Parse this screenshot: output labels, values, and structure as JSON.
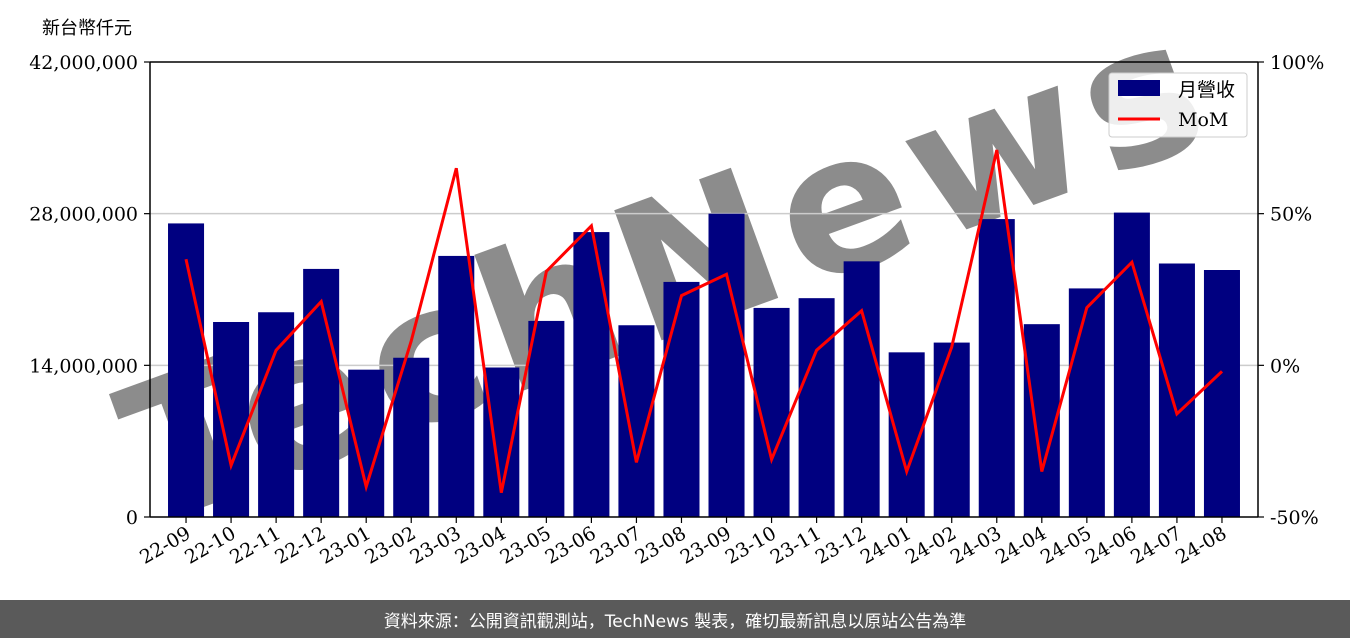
{
  "chart_data": {
    "type": "bar",
    "unit_label": "新台幣仟元",
    "categories": [
      "22-09",
      "22-10",
      "22-11",
      "22-12",
      "23-01",
      "23-02",
      "23-03",
      "23-04",
      "23-05",
      "23-06",
      "23-07",
      "23-08",
      "23-09",
      "23-10",
      "23-11",
      "23-12",
      "24-01",
      "24-02",
      "24-03",
      "24-04",
      "24-05",
      "24-06",
      "24-07",
      "24-08"
    ],
    "series": [
      {
        "name": "月營收",
        "type": "bar",
        "axis": "left",
        "color": "#000080",
        "values": [
          27100000,
          18000000,
          18900000,
          22900000,
          13600000,
          14700000,
          24100000,
          13800000,
          18100000,
          26300000,
          17700000,
          21700000,
          28000000,
          19300000,
          20200000,
          23600000,
          15200000,
          16100000,
          27500000,
          17800000,
          21100000,
          28100000,
          23400000,
          22800000
        ]
      },
      {
        "name": "MoM",
        "type": "line",
        "axis": "right",
        "color": "#ff0000",
        "values": [
          35,
          -33,
          5,
          21,
          -40,
          8,
          65,
          -42,
          31,
          46,
          -32,
          23,
          30,
          -31,
          5,
          18,
          -35,
          6,
          71,
          -35,
          19,
          34,
          -16,
          -2
        ]
      }
    ],
    "y_left": {
      "min": 0,
      "max": 42000000,
      "ticks": [
        0,
        14000000,
        28000000,
        42000000
      ],
      "tick_labels": [
        "0",
        "14,000,000",
        "28,000,000",
        "42,000,000"
      ]
    },
    "y_right": {
      "min": -50,
      "max": 100,
      "ticks": [
        -50,
        0,
        50,
        100
      ],
      "tick_labels": [
        "-50%",
        "0%",
        "50%",
        "100%"
      ]
    },
    "grid": "horizontal",
    "legend": {
      "placement": "top-right",
      "entries": [
        "月營收",
        "MoM"
      ]
    },
    "watermark": "TechNews"
  },
  "footer": {
    "text": "資料來源：公開資訊觀測站，TechNews 製表，確切最新訊息以原站公告為準"
  }
}
